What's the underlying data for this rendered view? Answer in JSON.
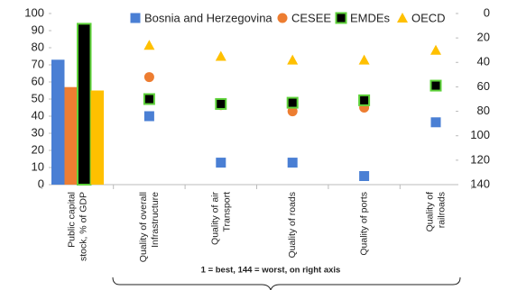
{
  "chart_data": [
    {
      "type": "bar",
      "categories": [
        [
          "Public capital",
          "stock, % of GDP"
        ]
      ],
      "ylim": [
        0,
        100
      ],
      "yticks": [
        0,
        10,
        20,
        30,
        40,
        50,
        60,
        70,
        80,
        90,
        100
      ],
      "series": [
        {
          "color": "#4a7fd4",
          "values": [
            73
          ]
        },
        {
          "color": "#ed7d31",
          "values": [
            57
          ]
        },
        {
          "color": "#000000",
          "edge": "#5ed23a",
          "values": [
            94
          ]
        },
        {
          "color": "#ffc000",
          "values": [
            55
          ]
        }
      ]
    },
    {
      "type": "scatter",
      "categories": [
        [
          "Quality of overall",
          "Infrastructure"
        ],
        [
          "Quality of air",
          "Transport"
        ],
        [
          "Quality of roads"
        ],
        [
          "Quality of ports"
        ],
        [
          "Quality of",
          "railroads"
        ]
      ],
      "y2lim": [
        140,
        0
      ],
      "y2ticks": [
        0,
        20,
        40,
        60,
        80,
        100,
        120,
        140
      ],
      "annotation": "1 = best, 144 = worst, on right axis",
      "legend": "top-right",
      "series": [
        {
          "name": "Bosnia and Herzegovina",
          "marker": "square",
          "color": "#4a7fd4",
          "axis": "y2",
          "values": [
            84,
            122,
            122,
            133,
            89
          ]
        },
        {
          "name": "CESEE",
          "marker": "circle",
          "color": "#ed7d31",
          "axis": "y2",
          "values": [
            52,
            75,
            80,
            77,
            59
          ]
        },
        {
          "name": "EMDEs",
          "marker": "square",
          "color": "#000000",
          "edge": "#5ed23a",
          "axis": "y2",
          "values": [
            70,
            74,
            73,
            71,
            59
          ]
        },
        {
          "name": "OECD",
          "marker": "triangle",
          "color": "#ffc000",
          "axis": "y2",
          "values": [
            26,
            35,
            38,
            38,
            30
          ]
        }
      ]
    }
  ]
}
